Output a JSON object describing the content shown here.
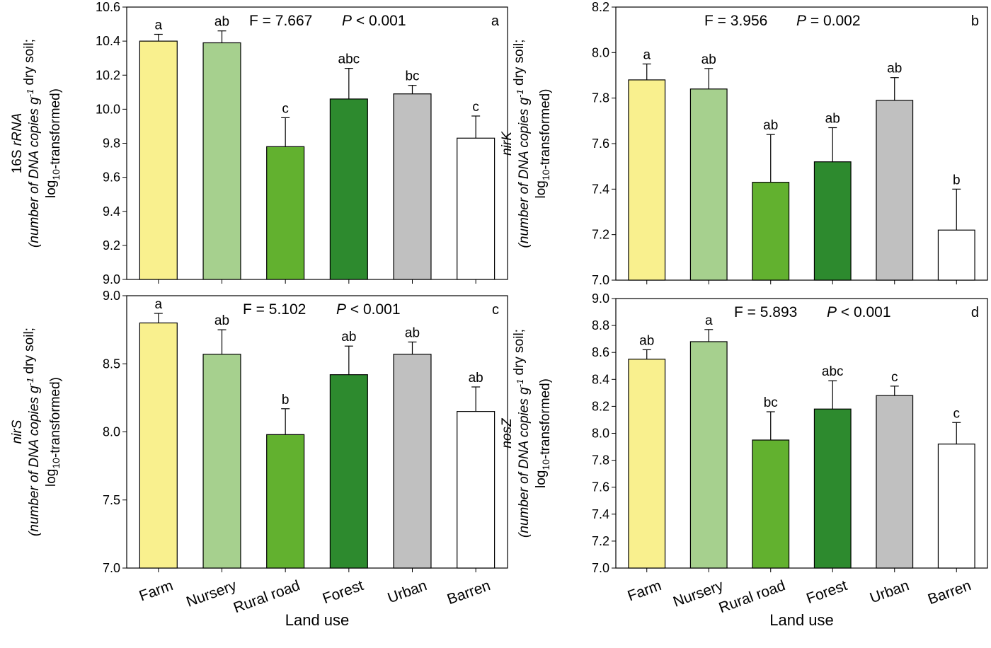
{
  "chart_data": [
    {
      "type": "bar",
      "panel_label": "a",
      "categories": [
        "Farm",
        "Nursery",
        "Rural road",
        "Forest",
        "Urban",
        "Barren"
      ],
      "values": [
        10.4,
        10.39,
        9.78,
        10.06,
        10.09,
        9.83
      ],
      "error_upper": [
        10.44,
        10.46,
        9.95,
        10.24,
        10.14,
        9.96
      ],
      "letters": [
        "a",
        "ab",
        "c",
        "abc",
        "bc",
        "c"
      ],
      "stat_f": "F = 7.667",
      "stat_p_label": "P",
      "stat_p_value": "< 0.001",
      "ylabel": {
        "gene": "16S ",
        "gene_italic": "rRNA",
        "line2": "(number of DNA copies g",
        "sup": "-1",
        "line2_end": " dry soil;",
        "line3_pre": "log",
        "line3_sub": "10",
        "line3_post": "-transformed)"
      },
      "ylim": [
        9.0,
        10.6
      ],
      "yticks": [
        "9.0",
        "9.2",
        "9.4",
        "9.6",
        "9.8",
        "10.0",
        "10.2",
        "10.4",
        "10.6"
      ],
      "show_xticklabels": false,
      "xlabel": ""
    },
    {
      "type": "bar",
      "panel_label": "b",
      "categories": [
        "Farm",
        "Nursery",
        "Rural road",
        "Forest",
        "Urban",
        "Barren"
      ],
      "values": [
        7.88,
        7.84,
        7.43,
        7.52,
        7.79,
        7.22
      ],
      "error_upper": [
        7.95,
        7.93,
        7.64,
        7.67,
        7.89,
        7.4
      ],
      "letters": [
        "a",
        "ab",
        "ab",
        "ab",
        "ab",
        "b"
      ],
      "stat_f": "F = 3.956",
      "stat_p_label": "P",
      "stat_p_value": "= 0.002",
      "ylabel": {
        "gene": "",
        "gene_italic": "nirK",
        "line2": "(number of DNA copies g",
        "sup": "-1",
        "line2_end": " dry soil;",
        "line3_pre": "log",
        "line3_sub": "10",
        "line3_post": "-transformed)"
      },
      "ylim": [
        7.0,
        8.2
      ],
      "yticks": [
        "7.0",
        "7.2",
        "7.4",
        "7.6",
        "7.8",
        "8.0",
        "8.2"
      ],
      "show_xticklabels": false,
      "xlabel": ""
    },
    {
      "type": "bar",
      "panel_label": "c",
      "categories": [
        "Farm",
        "Nursery",
        "Rural road",
        "Forest",
        "Urban",
        "Barren"
      ],
      "values": [
        8.8,
        8.57,
        7.98,
        8.42,
        8.57,
        8.15
      ],
      "error_upper": [
        8.87,
        8.75,
        8.17,
        8.63,
        8.66,
        8.33
      ],
      "letters": [
        "a",
        "ab",
        "b",
        "ab",
        "ab",
        "ab"
      ],
      "stat_f": "F = 5.102",
      "stat_p_label": "P",
      "stat_p_value": "< 0.001",
      "ylabel": {
        "gene": "",
        "gene_italic": "nirS",
        "line2": "(number of DNA copies g",
        "sup": "-1",
        "line2_end": " dry soil;",
        "line3_pre": "log",
        "line3_sub": "10",
        "line3_post": "-transformed)"
      },
      "ylim": [
        7.0,
        9.0
      ],
      "yticks": [
        "7.0",
        "7.5",
        "8.0",
        "8.5",
        "9.0"
      ],
      "show_xticklabels": true,
      "xlabel": "Land use"
    },
    {
      "type": "bar",
      "panel_label": "d",
      "categories": [
        "Farm",
        "Nursery",
        "Rural road",
        "Forest",
        "Urban",
        "Barren"
      ],
      "values": [
        8.55,
        8.68,
        7.95,
        8.18,
        8.28,
        7.92
      ],
      "error_upper": [
        8.62,
        8.77,
        8.16,
        8.39,
        8.35,
        8.08
      ],
      "letters": [
        "ab",
        "a",
        "bc",
        "abc",
        "c",
        "c"
      ],
      "stat_f": "F = 5.893",
      "stat_p_label": "P",
      "stat_p_value": "< 0.001",
      "ylabel": {
        "gene": "",
        "gene_italic": "nosZ",
        "line2": "(number of DNA copies g",
        "sup": "-1",
        "line2_end": " dry soil;",
        "line3_pre": "log",
        "line3_sub": "10",
        "line3_post": "-transformed)"
      },
      "ylim": [
        7.0,
        9.0
      ],
      "yticks": [
        "7.0",
        "7.2",
        "7.4",
        "7.6",
        "7.8",
        "8.0",
        "8.2",
        "8.4",
        "8.6",
        "8.8",
        "9.0"
      ],
      "show_xticklabels": true,
      "xlabel": "Land use"
    }
  ],
  "colors": {
    "Farm": "#f9f08e",
    "Nursery": "#a6d08e",
    "Rural road": "#62b12f",
    "Forest": "#2d8a2e",
    "Urban": "#c0c0c0",
    "Barren": "#ffffff"
  }
}
